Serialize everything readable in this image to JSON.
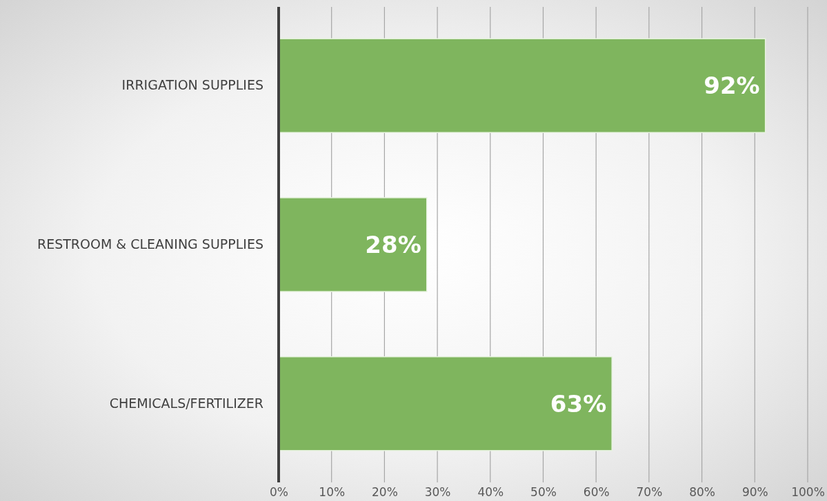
{
  "chart_data": {
    "type": "bar",
    "orientation": "horizontal",
    "categories": [
      "IRRIGATION SUPPLIES",
      "RESTROOM & CLEANING SUPPLIES",
      "CHEMICALS/FERTILIZER"
    ],
    "values": [
      92,
      28,
      63
    ],
    "value_labels": [
      "92%",
      "28%",
      "63%"
    ],
    "color": "#7fb55e",
    "xlim": [
      0,
      100
    ],
    "xticks": [
      {
        "value": 0,
        "label": "0%"
      },
      {
        "value": 10,
        "label": "10%"
      },
      {
        "value": 20,
        "label": "20%"
      },
      {
        "value": 30,
        "label": "30%"
      },
      {
        "value": 40,
        "label": "40%"
      },
      {
        "value": 50,
        "label": "50%"
      },
      {
        "value": 60,
        "label": "60%"
      },
      {
        "value": 70,
        "label": "70%"
      },
      {
        "value": 80,
        "label": "80%"
      },
      {
        "value": 90,
        "label": "90%"
      },
      {
        "value": 100,
        "label": "100%"
      }
    ],
    "grid": "x"
  }
}
